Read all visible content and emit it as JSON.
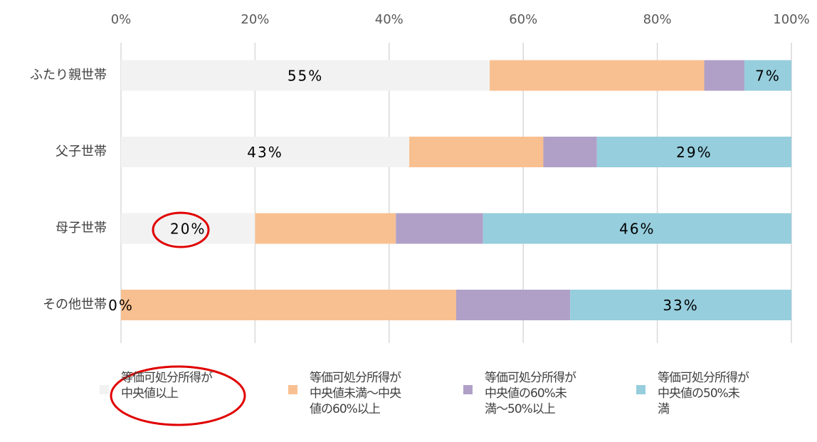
{
  "chart_data": {
    "type": "stacked_bar_horizontal",
    "categories": [
      "ふたり親世帯",
      "父子世帯",
      "母子世帯",
      "その他世帯"
    ],
    "series": [
      {
        "name": "等価可処分所得が中央値以上",
        "color": "#f2f2f2",
        "values": [
          55,
          43,
          20,
          0
        ],
        "value_labels": [
          "55%",
          "43%",
          "20%",
          "0%"
        ]
      },
      {
        "name": "等価可処分所得が中央値未満～中央値の60%以上",
        "color": "#f8c090",
        "values": [
          32,
          20,
          21,
          50
        ]
      },
      {
        "name": "等価可処分所得が中央値の60%未満～50%以上",
        "color": "#b0a0c8",
        "values": [
          6,
          8,
          13,
          17
        ]
      },
      {
        "name": "等価可処分所得が中央値の50%未満",
        "color": "#96cedd",
        "values": [
          7,
          29,
          46,
          33
        ],
        "value_labels": [
          "7%",
          "29%",
          "46%",
          "33%"
        ]
      }
    ],
    "xlim": [
      0,
      100
    ],
    "xticks": [
      {
        "value": 0,
        "label": "0%"
      },
      {
        "value": 20,
        "label": "20%"
      },
      {
        "value": 40,
        "label": "40%"
      },
      {
        "value": 60,
        "label": "60%"
      },
      {
        "value": 80,
        "label": "80%"
      },
      {
        "value": 100,
        "label": "100%"
      }
    ],
    "grid": true,
    "legend": "bottom"
  }
}
